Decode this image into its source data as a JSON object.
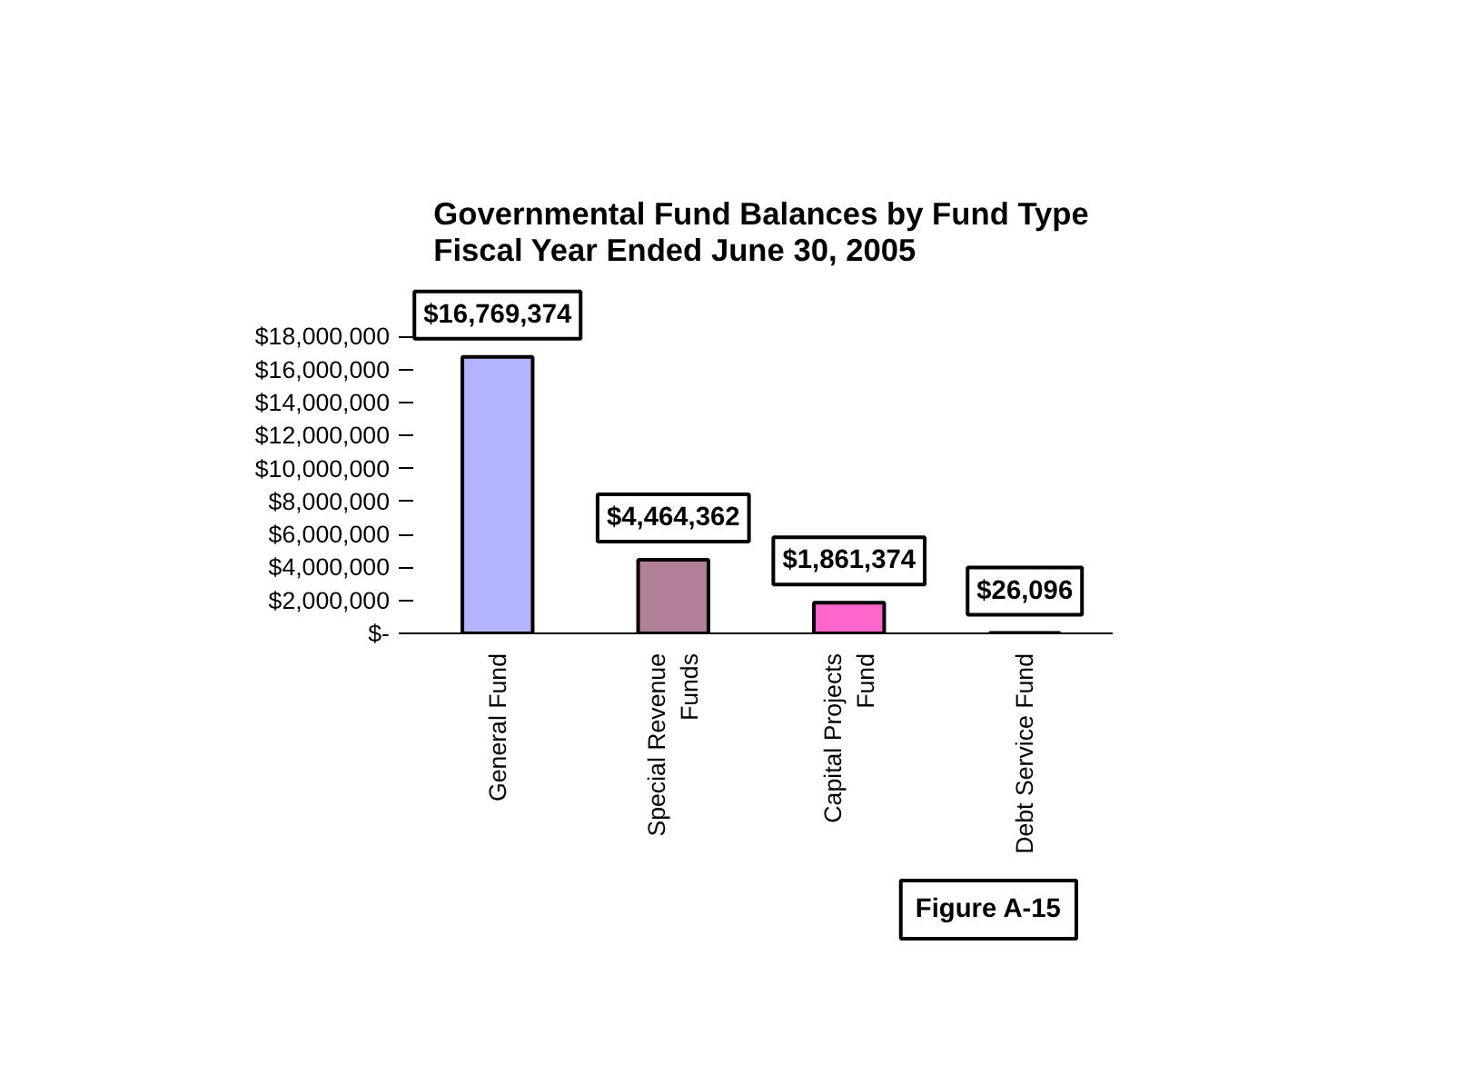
{
  "chart_data": {
    "type": "bar",
    "title": "Governmental Fund Balances by Fund Type\nFiscal Year Ended June 30, 2005",
    "categories": [
      "General Fund",
      "Special Revenue\nFunds",
      "Capital Projects\nFund",
      "Debt Service Fund"
    ],
    "values": [
      16769374,
      4464362,
      1861374,
      26096
    ],
    "colors": [
      "#b3b3ff",
      "#b3809a",
      "#ff66cc",
      "#333333"
    ],
    "value_labels": [
      "$16,769,374",
      "$4,464,362",
      "$1,861,374",
      "$26,096"
    ],
    "ylim": [
      0,
      18000000
    ],
    "yticks": [
      {
        "value": 0,
        "label": "$-"
      },
      {
        "value": 2000000,
        "label": "$2,000,000"
      },
      {
        "value": 4000000,
        "label": "$4,000,000"
      },
      {
        "value": 6000000,
        "label": "$6,000,000"
      },
      {
        "value": 8000000,
        "label": "$8,000,000"
      },
      {
        "value": 10000000,
        "label": "$10,000,000"
      },
      {
        "value": 12000000,
        "label": "$12,000,000"
      },
      {
        "value": 14000000,
        "label": "$14,000,000"
      },
      {
        "value": 16000000,
        "label": "$16,000,000"
      },
      {
        "value": 18000000,
        "label": "$18,000,000"
      }
    ],
    "annotations": [
      "Figure A-15"
    ],
    "grid": false
  }
}
